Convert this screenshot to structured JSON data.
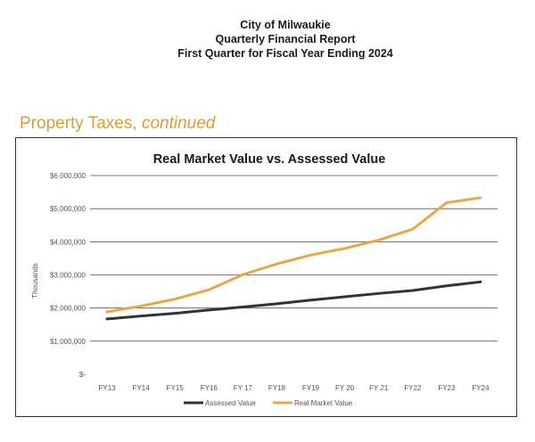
{
  "header": {
    "line1": "City of Milwaukie",
    "line2": "Quarterly Financial Report",
    "line3": "First Quarter for Fiscal Year Ending 2024"
  },
  "section": {
    "heading_plain": "Property Taxes, ",
    "heading_italic": "continued"
  },
  "colors": {
    "assessed": "#333333",
    "market": "#e8a84a",
    "heading": "#d4a03c",
    "grid": "#555555"
  },
  "chart_data": {
    "type": "line",
    "title": "Real Market Value vs. Assessed Value",
    "ylabel": "Thousands",
    "xlabel": "",
    "categories": [
      "FY13",
      "FY14",
      "FY15",
      "FY16",
      "FY 17",
      "FY18",
      "FY19",
      "FY 20",
      "FY 21",
      "FY22",
      "FY23",
      "FY24"
    ],
    "ylim": [
      0,
      6000000
    ],
    "yticks": [
      0,
      1000000,
      2000000,
      3000000,
      4000000,
      5000000,
      6000000
    ],
    "ytick_labels": [
      "$-",
      "$1,000,000",
      "$2,000,000",
      "$3,000,000",
      "$4,000,000",
      "$5,000,000",
      "$6,000,000"
    ],
    "grid": true,
    "legend_position": "bottom",
    "series": [
      {
        "name": "Assessed Value",
        "values": [
          1670000,
          1760000,
          1840000,
          1940000,
          2030000,
          2130000,
          2240000,
          2340000,
          2440000,
          2530000,
          2670000,
          2790000
        ]
      },
      {
        "name": "Real Market Value",
        "values": [
          1880000,
          2060000,
          2270000,
          2550000,
          3010000,
          3330000,
          3600000,
          3800000,
          4050000,
          4380000,
          5180000,
          5330000
        ]
      }
    ]
  }
}
